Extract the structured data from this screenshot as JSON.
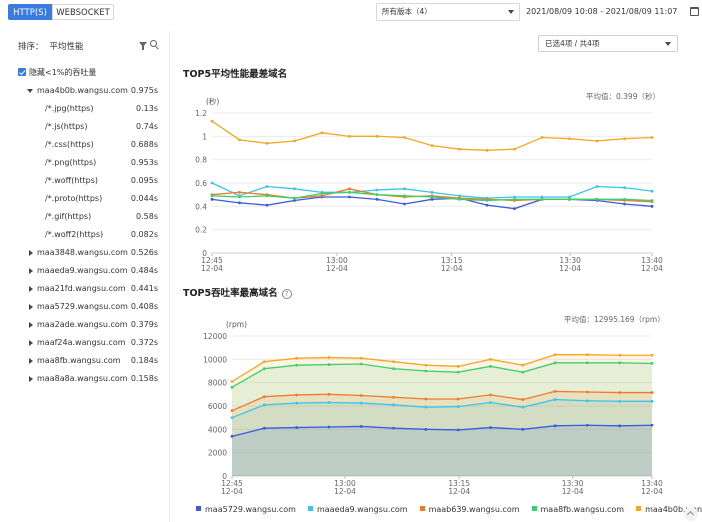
{
  "topbar": {
    "tabs": [
      {
        "label": "HTTP(S)"
      },
      {
        "label": "WEBSOCKET"
      }
    ],
    "version_select": "所有版本（4）",
    "date_range": "2021/08/09 10:08 - 2021/08/09 11:07"
  },
  "sidebar": {
    "sort_label": "排序：",
    "sort_value": "平均性能",
    "hide_label": "隐藏<1%的吞吐量",
    "domains": [
      {
        "name": "maa4b0b.wangsu.com",
        "time": "0.975s",
        "expanded": true
      },
      {
        "name": "/*.jpg(https)",
        "time": "0.13s",
        "sub": true
      },
      {
        "name": "/*.js(https)",
        "time": "0.74s",
        "sub": true
      },
      {
        "name": "/*.css(https)",
        "time": "0.688s",
        "sub": true
      },
      {
        "name": "/*.png(https)",
        "time": "0.953s",
        "sub": true
      },
      {
        "name": "/*.woff(https)",
        "time": "0.095s",
        "sub": true
      },
      {
        "name": "/*.proto(https)",
        "time": "0.044s",
        "sub": true
      },
      {
        "name": "/*.gif(https)",
        "time": "0.58s",
        "sub": true
      },
      {
        "name": "/*.woff2(https)",
        "time": "0.082s",
        "sub": true
      },
      {
        "name": "maa3848.wangsu.com",
        "time": "0.526s"
      },
      {
        "name": "maaeda9.wangsu.com",
        "time": "0.484s"
      },
      {
        "name": "maa21fd.wangsu.com",
        "time": "0.441s"
      },
      {
        "name": "maa5729.wangsu.com",
        "time": "0.408s"
      },
      {
        "name": "maa2ade.wangsu.com",
        "time": "0.379s"
      },
      {
        "name": "maaf24a.wangsu.com",
        "time": "0.372s"
      },
      {
        "name": "maa8fb.wangsu.com",
        "time": "0.184s"
      },
      {
        "name": "maa8a8a.wangsu.com",
        "time": "0.158s"
      }
    ]
  },
  "main": {
    "selected_label": "已选4项 / 共4项",
    "chart1_title": "TOP5平均性能最差域名",
    "chart1_avg": "平均值：0.399（秒）",
    "chart2_title": "TOP5吞吐率最高域名",
    "chart2_avg": "平均值：12995.169（rpm）",
    "help_glyph": "?"
  },
  "colors": {
    "accent": "#3a7be0",
    "series": [
      "#3b5bdb",
      "#3bc4e8",
      "#f07a2a",
      "#3ccf6e",
      "#f5a623"
    ]
  },
  "chart_data": [
    {
      "type": "line",
      "title": "TOP5平均性能最差域名",
      "ylabel": "(秒)",
      "ylim": [
        0,
        1.2
      ],
      "yticks": [
        "0",
        "0.2",
        "0.4",
        "0.6",
        "0.8",
        "1",
        "1.2"
      ],
      "x_ticks": [
        [
          "12:45",
          "12-04"
        ],
        [
          "13:00",
          "12-04"
        ],
        [
          "13:15",
          "12-04"
        ],
        [
          "13:30",
          "12-04"
        ],
        [
          "13:40",
          "12-04"
        ]
      ],
      "x_tick_index": [
        0,
        6,
        12,
        18,
        22
      ],
      "grid": true,
      "series": [
        {
          "color": "#3b5bdb",
          "values": [
            0.46,
            0.43,
            0.41,
            0.45,
            0.48,
            0.48,
            0.46,
            0.42,
            0.46,
            0.47,
            0.41,
            0.38,
            0.46,
            0.46,
            0.45,
            0.42,
            0.4
          ]
        },
        {
          "color": "#3bc4e8",
          "values": [
            0.6,
            0.49,
            0.57,
            0.55,
            0.52,
            0.52,
            0.54,
            0.55,
            0.52,
            0.49,
            0.47,
            0.48,
            0.48,
            0.48,
            0.57,
            0.56,
            0.53
          ]
        },
        {
          "color": "#f07a2a",
          "values": [
            0.5,
            0.52,
            0.5,
            0.47,
            0.49,
            0.55,
            0.5,
            0.48,
            0.49,
            0.47,
            0.46,
            0.45,
            0.46,
            0.46,
            0.46,
            0.45,
            0.44
          ]
        },
        {
          "color": "#3ccf6e",
          "values": [
            0.49,
            0.48,
            0.49,
            0.47,
            0.51,
            0.52,
            0.5,
            0.49,
            0.48,
            0.46,
            0.45,
            0.46,
            0.46,
            0.46,
            0.46,
            0.46,
            0.45
          ]
        },
        {
          "color": "#f5a623",
          "values": [
            1.13,
            0.97,
            0.94,
            0.96,
            1.03,
            1.0,
            1.0,
            0.99,
            0.92,
            0.89,
            0.88,
            0.89,
            0.99,
            0.98,
            0.96,
            0.98,
            0.99
          ]
        }
      ],
      "x_count": 17
    },
    {
      "type": "area",
      "title": "TOP5吞吐率最高域名",
      "ylabel": "(rpm)",
      "ylim": [
        0,
        12000
      ],
      "yticks": [
        "0",
        "2000",
        "4000",
        "6000",
        "8000",
        "10000",
        "12000"
      ],
      "x_ticks": [
        [
          "12:45",
          "12-04"
        ],
        [
          "13:00",
          "12-04"
        ],
        [
          "13:15",
          "12-04"
        ],
        [
          "13:30",
          "12-04"
        ],
        [
          "13:40",
          "12-04"
        ]
      ],
      "grid": true,
      "series": [
        {
          "name": "maa5729.wangsu.com",
          "color": "#3b5bdb",
          "values": [
            3400,
            4100,
            4150,
            4200,
            4250,
            4100,
            4000,
            3950,
            4150,
            4000,
            4300,
            4350,
            4300,
            4350
          ]
        },
        {
          "name": "maaeda9.wangsu.com",
          "color": "#3bc4e8",
          "values": [
            5000,
            6100,
            6250,
            6300,
            6250,
            6100,
            5900,
            5950,
            6300,
            5900,
            6550,
            6450,
            6400,
            6400
          ]
        },
        {
          "name": "maab639.wangsu.com",
          "color": "#f07a2a",
          "values": [
            5600,
            6800,
            6950,
            7000,
            6900,
            6750,
            6600,
            6600,
            6950,
            6550,
            7250,
            7200,
            7150,
            7150
          ]
        },
        {
          "name": "maa8fb.wangsu.com",
          "color": "#3ccf6e",
          "values": [
            7600,
            9200,
            9500,
            9550,
            9600,
            9200,
            9000,
            8900,
            9400,
            8900,
            9700,
            9700,
            9700,
            9650
          ]
        },
        {
          "name": "maa4b0b.wangsu.com",
          "color": "#f5a623",
          "values": [
            8100,
            9800,
            10100,
            10150,
            10100,
            9800,
            9500,
            9400,
            10000,
            9500,
            10400,
            10400,
            10350,
            10350
          ]
        }
      ],
      "legend": "bottom"
    }
  ]
}
